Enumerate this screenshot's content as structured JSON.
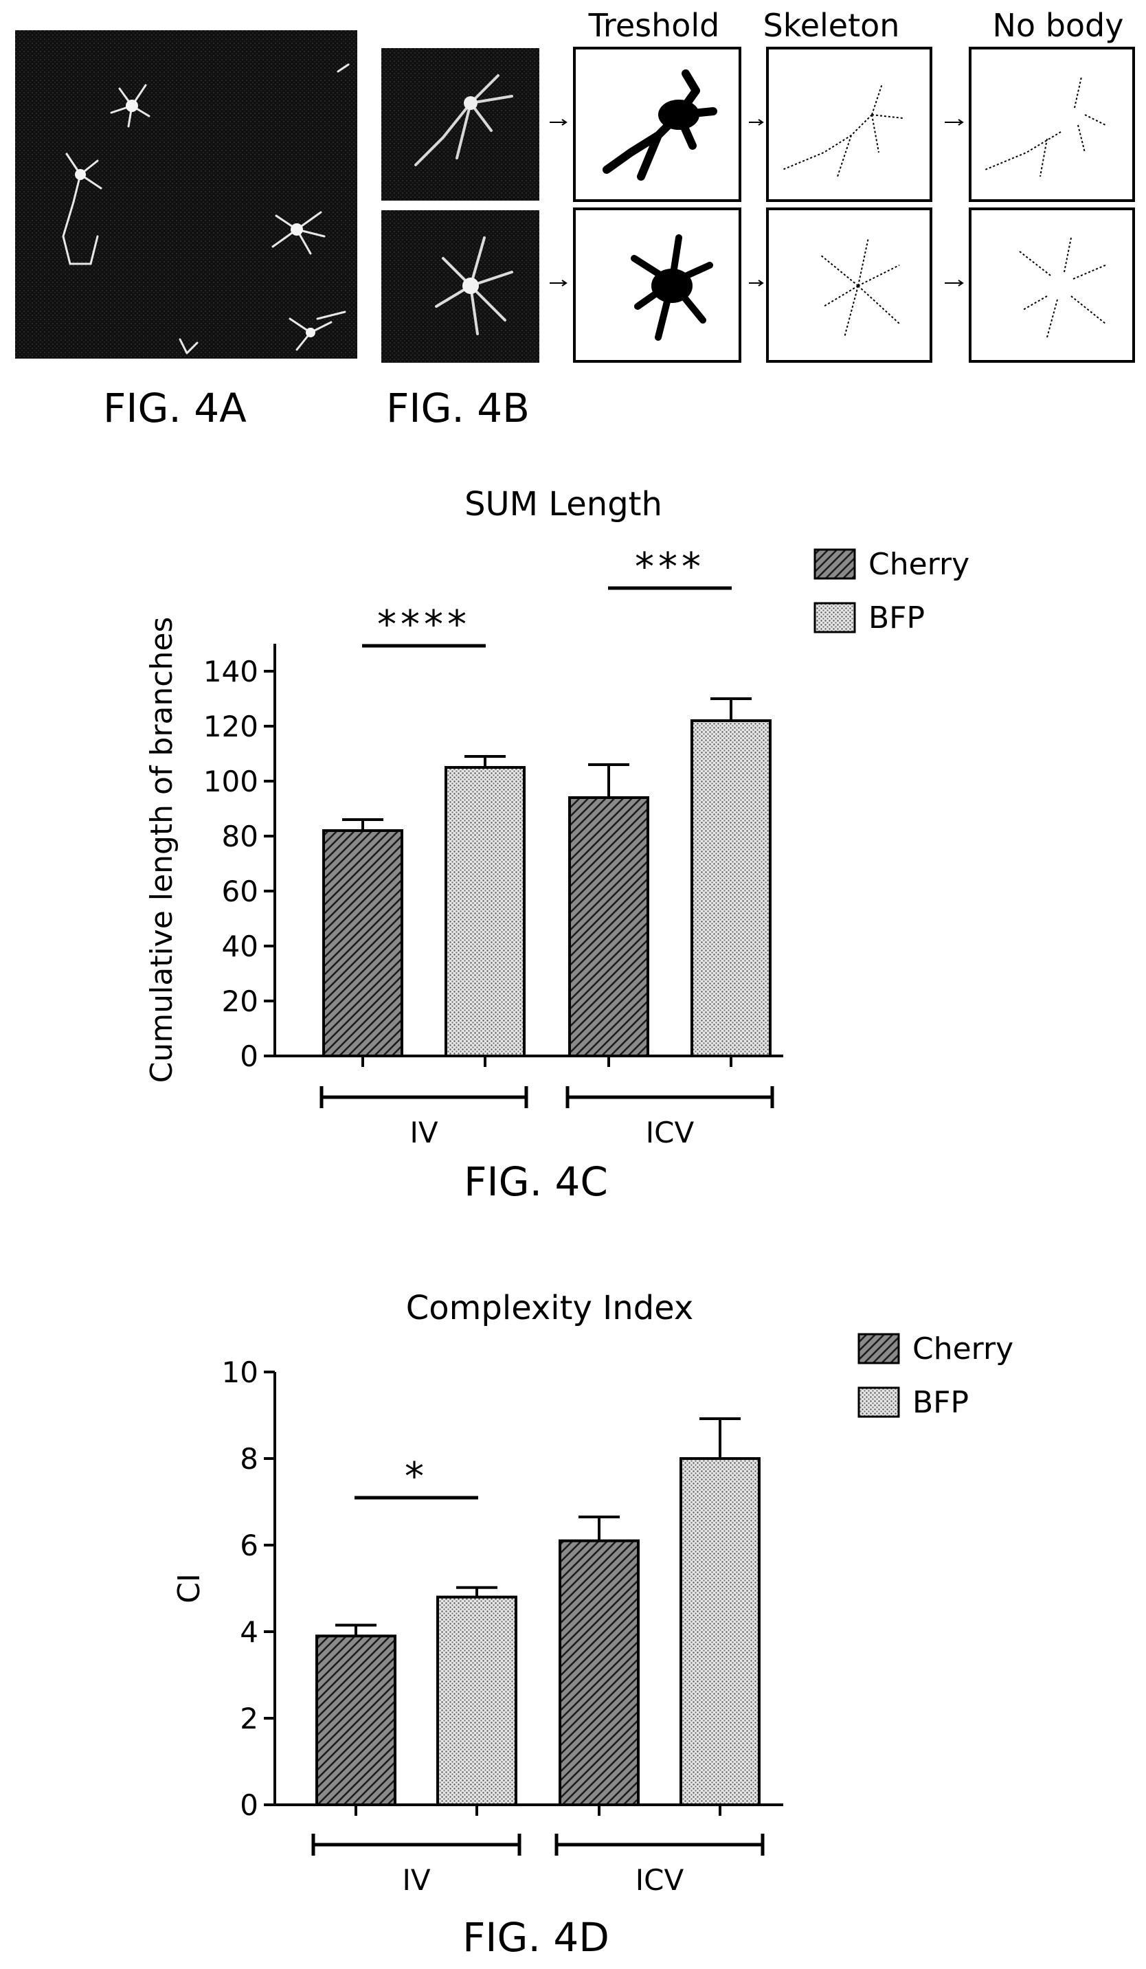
{
  "figure_4a": {
    "label": "FIG. 4A"
  },
  "figure_4b": {
    "label": "FIG. 4B",
    "steps": [
      "Treshold",
      "Skeleton",
      "No body"
    ]
  },
  "chart_data": [
    {
      "id": "fig-4c",
      "type": "bar",
      "title": "SUM Length",
      "ylabel": "Cumulative length of branches",
      "xlabel": "",
      "figure_label": "FIG. 4C",
      "ylim": [
        0,
        150
      ],
      "yticks": [
        0,
        20,
        40,
        60,
        80,
        100,
        120,
        140
      ],
      "groups": [
        "IV",
        "ICV"
      ],
      "series": [
        {
          "name": "Cherry",
          "values": [
            82,
            94
          ],
          "errors": [
            4,
            12
          ]
        },
        {
          "name": "BFP",
          "values": [
            105,
            122
          ],
          "errors": [
            4,
            8
          ]
        }
      ],
      "significance": [
        {
          "group": "IV",
          "label": "****"
        },
        {
          "group": "ICV",
          "label": "***"
        }
      ],
      "legend": "top-right",
      "grid": false
    },
    {
      "id": "fig-4d",
      "type": "bar",
      "title": "Complexity Index",
      "ylabel": "CI",
      "xlabel": "",
      "figure_label": "FIG. 4D",
      "ylim": [
        0,
        10
      ],
      "yticks": [
        0,
        2,
        4,
        6,
        8,
        10
      ],
      "groups": [
        "IV",
        "ICV"
      ],
      "series": [
        {
          "name": "Cherry",
          "values": [
            3.9,
            6.1
          ],
          "errors": [
            0.25,
            0.55
          ]
        },
        {
          "name": "BFP",
          "values": [
            4.8,
            8.0
          ],
          "errors": [
            0.22,
            0.92
          ]
        }
      ],
      "significance": [
        {
          "group": "IV",
          "label": "*"
        }
      ],
      "legend": "top-right",
      "grid": false
    }
  ]
}
